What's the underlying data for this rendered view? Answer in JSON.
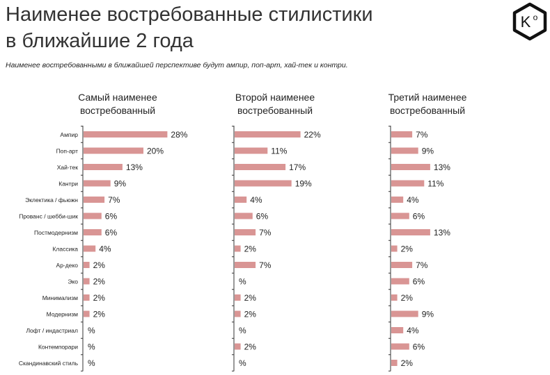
{
  "header": {
    "title_line1": "Наименее востребованные стилистики",
    "title_line2": "в ближайшие 2 года",
    "subtitle": "Наименее востребованными в ближайшей перспективе будут ампир, поп-арт, хай-тек и контри.",
    "logo_text": "K",
    "logo_sup": "o"
  },
  "colors": {
    "bar": "#d99594",
    "axis": "#333333",
    "text": "#222222"
  },
  "chart_data": {
    "type": "bar",
    "orientation": "horizontal",
    "categories": [
      "Ампир",
      "Поп-арт",
      "Хай-тек",
      "Кантри",
      "Эклектика / фьюжн",
      "Прованс / шебби-шик",
      "Постмодернизм",
      "Классика",
      "Ар-деко",
      "Эко",
      "Минимализм",
      "Модернизм",
      "Лофт / индастриал",
      "Контемпорари",
      "Скандинавский стиль"
    ],
    "series": [
      {
        "name": "Самый наименее востребованный",
        "title_lines": [
          "Самый наименее",
          "востребованный"
        ],
        "values": [
          28,
          20,
          13,
          9,
          7,
          6,
          6,
          4,
          2,
          2,
          2,
          2,
          null,
          null,
          null
        ]
      },
      {
        "name": "Второй наименее востребованный",
        "title_lines": [
          "Второй наименее",
          "востребованный"
        ],
        "values": [
          22,
          11,
          17,
          19,
          4,
          6,
          7,
          2,
          7,
          null,
          2,
          2,
          null,
          2,
          null
        ]
      },
      {
        "name": "Третий наименее востребованный",
        "title_lines": [
          "Третий наименее",
          "востребованный"
        ],
        "values": [
          7,
          9,
          13,
          11,
          4,
          6,
          13,
          2,
          7,
          6,
          2,
          9,
          4,
          6,
          2
        ]
      }
    ],
    "value_suffix": "%",
    "grid": false
  }
}
